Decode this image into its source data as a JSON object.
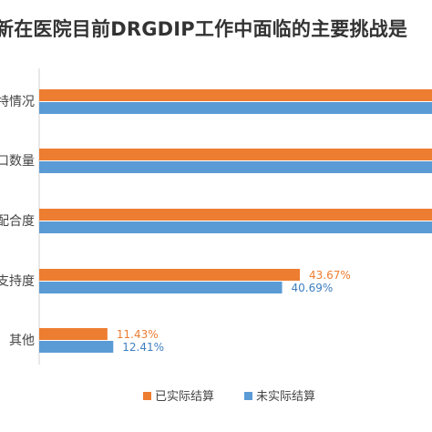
{
  "chart_data": {
    "type": "bar",
    "orientation": "horizontal",
    "title": "新在医院目前DRGDIP工作中面临的主要挑战是",
    "categories": [
      "特情况",
      "口数量",
      "配合度",
      "支持度",
      "其他"
    ],
    "series": [
      {
        "name": "已实际结算",
        "color": "#ED7D31",
        "values": [
          80,
          80,
          80,
          43.67,
          11.43
        ],
        "labels": [
          "",
          "",
          "",
          "43.67%",
          "11.43%"
        ]
      },
      {
        "name": "未实际结算",
        "color": "#5B9BD5",
        "values": [
          78,
          80,
          80,
          40.69,
          12.41
        ],
        "labels": [
          "",
          "",
          "",
          "40.69%",
          "12.41%"
        ]
      }
    ],
    "xlabel": "",
    "ylabel": "",
    "grid": false,
    "legend_position": "bottom"
  }
}
